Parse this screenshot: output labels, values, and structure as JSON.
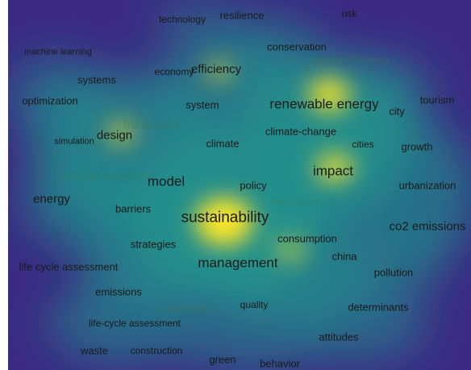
{
  "map": {
    "colors": {
      "low": "#3b2a83",
      "mid": "#21918c",
      "high": "#fde725"
    },
    "terms": [
      "technology",
      "resilience",
      "risk",
      "machine learning",
      "conservation",
      "energy efficiency",
      "economy",
      "efficiency",
      "systems",
      "optimization",
      "system",
      "renewable energy",
      "city",
      "tourism",
      "framework",
      "simulation",
      "design",
      "climate",
      "climate-change",
      "cities",
      "growth",
      "circular economy",
      "model",
      "policy",
      "impact",
      "urbanization",
      "energy",
      "barriers",
      "innovation",
      "sustainability",
      "co2 emissions",
      "strategies",
      "consumption",
      "life cycle assessment",
      "management",
      "china",
      "pollution",
      "emissions",
      "knowledge",
      "quality",
      "determinants",
      "life-cycle assessment",
      "attitudes",
      "waste",
      "construction",
      "green",
      "behavior"
    ]
  }
}
